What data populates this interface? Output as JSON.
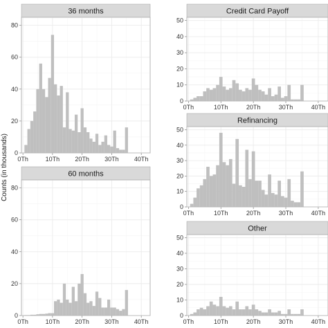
{
  "chart_data": [
    {
      "type": "bar",
      "id": "36m",
      "title": "36 months",
      "ylim": [
        0,
        85
      ],
      "yticks": [
        0,
        20,
        40,
        60,
        80
      ],
      "xlim": [
        -0.5,
        43
      ],
      "xticks": [
        {
          "v": 0,
          "label": "0Th"
        },
        {
          "v": 10,
          "label": "10Th"
        },
        {
          "v": 20,
          "label": "20Th"
        },
        {
          "v": 30,
          "label": "30Th"
        },
        {
          "v": 40,
          "label": "40Th"
        }
      ],
      "x": [
        1,
        2,
        3,
        4,
        5,
        6,
        7,
        8,
        9,
        10,
        11,
        12,
        13,
        14,
        15,
        16,
        17,
        18,
        19,
        20,
        21,
        22,
        23,
        24,
        25,
        26,
        27,
        28,
        29,
        30,
        31,
        32,
        33,
        34,
        35
      ],
      "values": [
        5,
        15,
        20,
        26,
        40,
        56,
        40,
        35,
        47,
        74,
        43,
        36,
        42,
        16,
        38,
        15,
        14,
        24,
        13,
        28,
        16,
        13,
        9,
        7,
        12,
        5,
        7,
        11,
        5,
        4,
        14,
        3,
        2,
        2,
        16
      ]
    },
    {
      "type": "bar",
      "id": "60m",
      "title": "60 months",
      "ylim": [
        0,
        85
      ],
      "yticks": [
        0,
        20,
        40,
        60,
        80
      ],
      "xlim": [
        -0.5,
        43
      ],
      "xticks": [
        {
          "v": 0,
          "label": "0Th"
        },
        {
          "v": 10,
          "label": "10Th"
        },
        {
          "v": 20,
          "label": "20Th"
        },
        {
          "v": 30,
          "label": "30Th"
        },
        {
          "v": 40,
          "label": "40Th"
        }
      ],
      "x": [
        1,
        2,
        3,
        4,
        5,
        6,
        7,
        8,
        9,
        10,
        11,
        12,
        13,
        14,
        15,
        16,
        17,
        18,
        19,
        20,
        21,
        22,
        23,
        24,
        25,
        26,
        27,
        28,
        29,
        30,
        31,
        32,
        33,
        34,
        35
      ],
      "values": [
        0.3,
        0.3,
        0.5,
        0.5,
        0.8,
        1,
        1,
        1.2,
        1.5,
        1.5,
        9,
        10,
        8,
        20,
        10,
        8,
        18,
        9,
        20,
        26,
        14,
        8,
        9,
        6,
        15,
        11,
        5,
        5,
        10,
        5,
        5,
        4,
        3,
        4,
        16
      ]
    },
    {
      "type": "bar",
      "id": "ccp",
      "title": "Credit Card Payoff",
      "ylim": [
        0,
        52
      ],
      "yticks": [
        0,
        10,
        20,
        30,
        40,
        50
      ],
      "xlim": [
        -0.5,
        43
      ],
      "xticks": [
        {
          "v": 0,
          "label": "0Th"
        },
        {
          "v": 10,
          "label": "10Th"
        },
        {
          "v": 20,
          "label": "20Th"
        },
        {
          "v": 30,
          "label": "30Th"
        },
        {
          "v": 40,
          "label": "40Th"
        }
      ],
      "x": [
        1,
        2,
        3,
        4,
        5,
        6,
        7,
        8,
        9,
        10,
        11,
        12,
        13,
        14,
        15,
        16,
        17,
        18,
        19,
        20,
        21,
        22,
        23,
        24,
        25,
        26,
        27,
        28,
        29,
        30,
        31,
        32,
        33,
        34,
        35
      ],
      "values": [
        1,
        2,
        3,
        3,
        6,
        8,
        7,
        8,
        10,
        15,
        9,
        7,
        8,
        13,
        11,
        7,
        6,
        8,
        7,
        14,
        10,
        7,
        6,
        4,
        8,
        3,
        4,
        9,
        2,
        3,
        10,
        1,
        1,
        1,
        10
      ]
    },
    {
      "type": "bar",
      "id": "ref",
      "title": "Refinancing",
      "ylim": [
        0,
        52
      ],
      "yticks": [
        0,
        10,
        20,
        30,
        40,
        50
      ],
      "xlim": [
        -0.5,
        43
      ],
      "xticks": [
        {
          "v": 0,
          "label": "0Th"
        },
        {
          "v": 10,
          "label": "10Th"
        },
        {
          "v": 20,
          "label": "20Th"
        },
        {
          "v": 30,
          "label": "30Th"
        },
        {
          "v": 40,
          "label": "40Th"
        }
      ],
      "x": [
        1,
        2,
        3,
        4,
        5,
        6,
        7,
        8,
        9,
        10,
        11,
        12,
        13,
        14,
        15,
        16,
        17,
        18,
        19,
        20,
        21,
        22,
        23,
        24,
        25,
        26,
        27,
        28,
        29,
        30,
        31,
        32,
        33,
        34,
        35
      ],
      "values": [
        2,
        6,
        12,
        14,
        18,
        26,
        20,
        21,
        27,
        48,
        29,
        27,
        31,
        15,
        44,
        14,
        13,
        37,
        18,
        36,
        17,
        17,
        11,
        8,
        21,
        9,
        8,
        17,
        7,
        6,
        18,
        4,
        3,
        3,
        23
      ]
    },
    {
      "type": "bar",
      "id": "oth",
      "title": "Other",
      "ylim": [
        0,
        52
      ],
      "yticks": [
        0,
        10,
        20,
        30,
        40,
        50
      ],
      "xlim": [
        -0.5,
        43
      ],
      "xticks": [
        {
          "v": 0,
          "label": "0Th"
        },
        {
          "v": 10,
          "label": "10Th"
        },
        {
          "v": 20,
          "label": "20Th"
        },
        {
          "v": 30,
          "label": "30Th"
        },
        {
          "v": 40,
          "label": "40Th"
        }
      ],
      "x": [
        1,
        2,
        3,
        4,
        5,
        6,
        7,
        8,
        9,
        10,
        11,
        12,
        13,
        14,
        15,
        16,
        17,
        18,
        19,
        20,
        21,
        22,
        23,
        24,
        25,
        26,
        27,
        28,
        29,
        30,
        31,
        32,
        33,
        34,
        35
      ],
      "values": [
        1,
        2,
        4,
        5,
        4,
        6,
        9,
        7,
        6,
        12,
        6,
        5,
        6,
        4,
        9,
        4,
        4,
        6,
        4,
        7,
        4,
        3,
        2,
        2,
        4,
        2,
        2,
        3,
        1,
        1,
        4,
        1,
        1,
        1,
        4
      ]
    }
  ],
  "ylabel": "Counts (in thousands)"
}
